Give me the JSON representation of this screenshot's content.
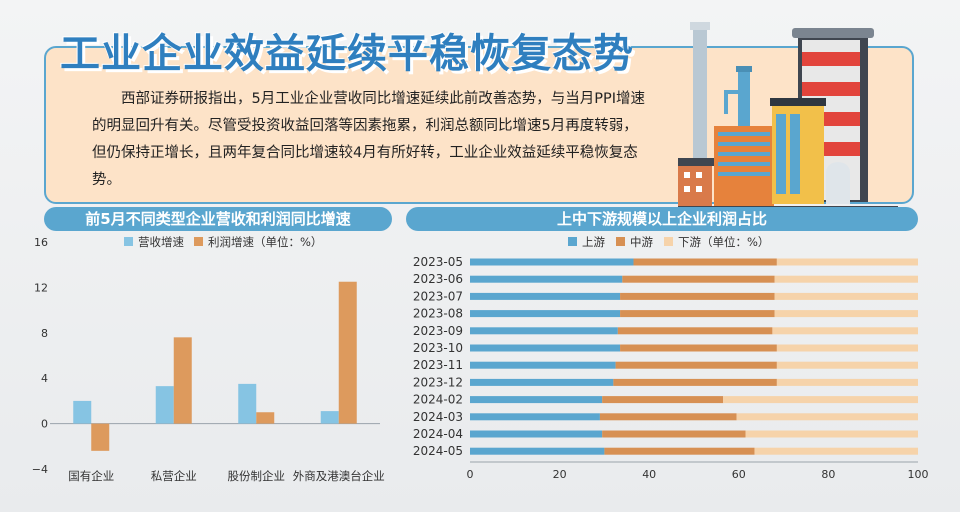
{
  "headline": "工业企业效益延续平稳恢复态势",
  "intro": "西部证券研报指出，5月工业企业营收同比增速延续此前改善态势，与当月PPI增速的明显回升有关。尽管受投资收益回落等因素拖累，利润总额同比增速5月再度转弱，但仍保持正增长，且两年复合同比增速较4月有所好转，工业企业效益延续平稳恢复态势。",
  "chart_data": [
    {
      "type": "bar",
      "title": "前5月不同类型企业营收和利润同比增速",
      "categories": [
        "国有企业",
        "私营企业",
        "股份制企业",
        "外商及港澳台企业"
      ],
      "series": [
        {
          "name": "营收增速",
          "color": "#86c4e3",
          "values": [
            2.0,
            3.3,
            3.5,
            1.1
          ]
        },
        {
          "name": "利润增速（单位：%）",
          "color": "#dd9a5d",
          "values": [
            -2.4,
            7.6,
            1.0,
            12.5
          ]
        }
      ],
      "ylim": [
        -4,
        16
      ],
      "yticks": [
        "−4",
        "0",
        "4",
        "8",
        "12",
        "16"
      ],
      "ytick_values": [
        -4,
        0,
        4,
        8,
        12,
        16
      ],
      "legend": "top-right",
      "grid": false
    },
    {
      "type": "bar",
      "orientation": "horizontal",
      "stacked": true,
      "title": "上中下游规模以上企业利润占比",
      "categories": [
        "2023-05",
        "2023-06",
        "2023-07",
        "2023-08",
        "2023-09",
        "2023-10",
        "2023-11",
        "2023-12",
        "2024-02",
        "2024-03",
        "2024-04",
        "2024-05"
      ],
      "series": [
        {
          "name": "上游",
          "color": "#5aa6cf",
          "values": [
            36.5,
            34.0,
            33.5,
            33.5,
            33.0,
            33.5,
            32.5,
            32.0,
            29.5,
            29.0,
            29.5,
            30.0
          ]
        },
        {
          "name": "中游",
          "color": "#d79053",
          "values": [
            32.0,
            34.0,
            34.5,
            34.5,
            34.5,
            35.0,
            36.0,
            36.5,
            27.0,
            30.5,
            32.0,
            33.5
          ]
        },
        {
          "name": "下游（单位：%）",
          "color": "#f6d3aa",
          "values": [
            31.5,
            32.0,
            32.0,
            32.0,
            32.5,
            31.5,
            31.5,
            31.5,
            43.5,
            40.5,
            38.5,
            36.5
          ]
        }
      ],
      "xlim": [
        0,
        100
      ],
      "xticks": [
        "0",
        "20",
        "40",
        "60",
        "80",
        "100"
      ],
      "xtick_values": [
        0,
        20,
        40,
        60,
        80,
        100
      ],
      "legend": "top-center",
      "grid": false
    }
  ],
  "colors": {
    "accent": "#5aa6cf",
    "card": "#fde3c8",
    "headline": "#2f7fbf"
  },
  "illustration": "factory-illustration"
}
